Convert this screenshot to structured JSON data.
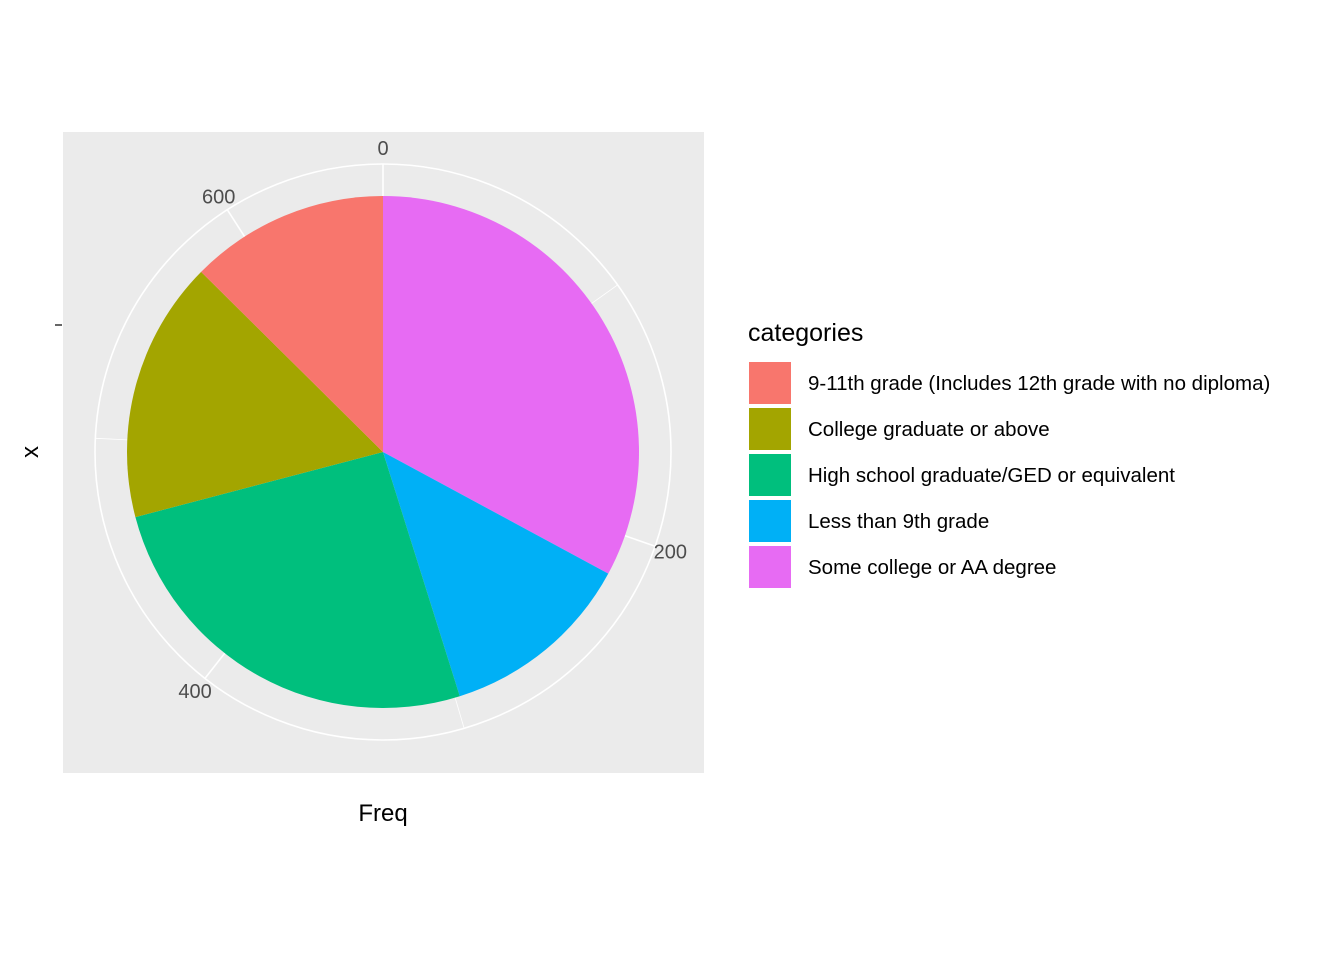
{
  "chart_data": {
    "type": "pie",
    "coord": "polar",
    "xlabel": "Freq",
    "ylabel": "x",
    "legend_title": "categories",
    "legend_position": "right",
    "grid": true,
    "theta_breaks": [
      0,
      200,
      400,
      600
    ],
    "theta_labels": [
      "0",
      "200",
      "400",
      "600"
    ],
    "total": 660,
    "slices": [
      {
        "label": "Some college or AA degree",
        "value": 217,
        "color": "#E76BF3"
      },
      {
        "label": "Less than 9th grade",
        "value": 81,
        "color": "#00B0F6"
      },
      {
        "label": "High school graduate/GED or equivalent",
        "value": 170,
        "color": "#00BF7D"
      },
      {
        "label": "College graduate or above",
        "value": 109,
        "color": "#A3A500"
      },
      {
        "label": "9-11th grade (Includes 12th grade with no diploma)",
        "value": 83,
        "color": "#F8766D"
      }
    ],
    "legend_order": [
      "9-11th grade (Includes 12th grade with no diploma)",
      "College graduate or above",
      "High school graduate/GED or equivalent",
      "Less than 9th grade",
      "Some college or AA degree"
    ]
  }
}
